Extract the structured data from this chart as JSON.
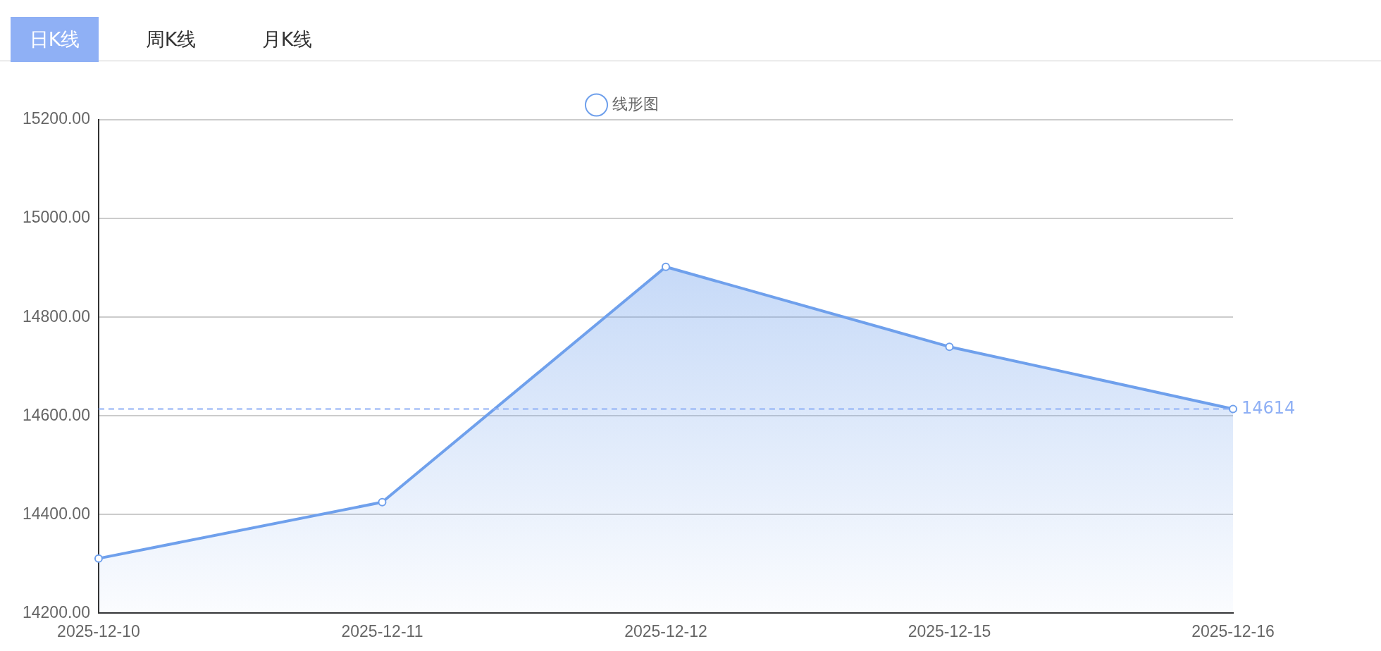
{
  "chart_data": {
    "type": "area",
    "categories": [
      "2025-12-10",
      "2025-12-11",
      "2025-12-12",
      "2025-12-15",
      "2025-12-16"
    ],
    "series": [
      {
        "name": "线形图",
        "color": "#6fa0ec",
        "values": [
          14311,
          14425,
          14902,
          14740,
          14614
        ]
      }
    ],
    "ylim": [
      14200,
      15200
    ],
    "yticks": [
      {
        "value": 14200,
        "label": "14200.00"
      },
      {
        "value": 14400,
        "label": "14400.00"
      },
      {
        "value": 14600,
        "label": "14600.00"
      },
      {
        "value": 14800,
        "label": "14800.00"
      },
      {
        "value": 15000,
        "label": "15000.00"
      },
      {
        "value": 15200,
        "label": "15200.00"
      }
    ],
    "ref_lines": [
      {
        "axis": "y",
        "value": 14614,
        "label": "14614",
        "color": "#8fb0f5",
        "line_style": "dashed"
      }
    ],
    "annotations": [
      "日K线",
      "周K线",
      "月K线"
    ],
    "grid": "y",
    "legend": "top",
    "marker": "circle",
    "line_style": "solid"
  }
}
